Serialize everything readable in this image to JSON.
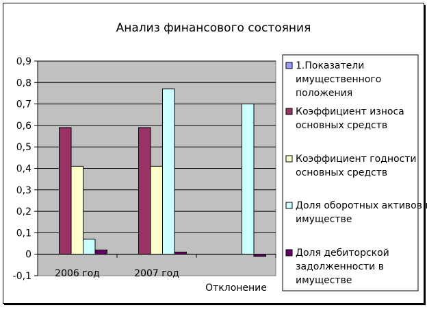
{
  "chart_data": {
    "type": "bar",
    "title": "Анализ финансового состояния",
    "categories": [
      "2006 год",
      "2007 год",
      "Отклонение"
    ],
    "ylim": [
      -0.1,
      0.9
    ],
    "yticks": [
      -0.1,
      0,
      0.1,
      0.2,
      0.3,
      0.4,
      0.5,
      0.6,
      0.7,
      0.8,
      0.9
    ],
    "ytick_labels": [
      "-0,1",
      "0",
      "0,1",
      "0,2",
      "0,3",
      "0,4",
      "0,5",
      "0,6",
      "0,7",
      "0,8",
      "0,9"
    ],
    "grid": true,
    "legend_position": "right",
    "series": [
      {
        "name": "1.Показатели имущественного положения",
        "color": "#9999ff",
        "values": [
          0,
          0,
          0
        ]
      },
      {
        "name": "Коэффициент износа основных средств",
        "color": "#993366",
        "values": [
          0.59,
          0.59,
          0
        ]
      },
      {
        "name": "Коэффициент годности основных средств",
        "color": "#ffffcc",
        "values": [
          0.41,
          0.41,
          0
        ]
      },
      {
        "name": "Доля оборотных активов в имуществе",
        "color": "#ccffff",
        "values": [
          0.07,
          0.77,
          0.7
        ]
      },
      {
        "name": "Доля дебиторской задолженности в имуществе",
        "color": "#660066",
        "values": [
          0.02,
          0.01,
          -0.01
        ]
      }
    ],
    "plot_background": "#c0c0c0"
  }
}
